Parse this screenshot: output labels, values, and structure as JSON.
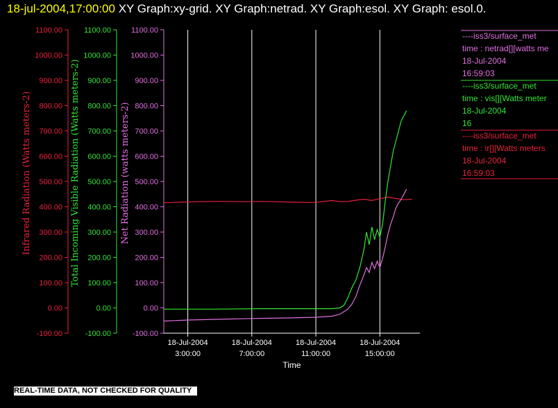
{
  "header": {
    "timestamp": "18-jul-2004,17:00:00",
    "title_rest": "  XY Graph:xy-grid.  XY Graph:netrad.  XY Graph:esol.  XY Graph: esol.0."
  },
  "footer": {
    "note": "REAL-TIME DATA, NOT CHECKED FOR QUALITY"
  },
  "colors": {
    "background": "#000000",
    "ir": "#e8203c",
    "vis": "#33e633",
    "net": "#e070e0",
    "grid": "#ffffff",
    "text": "#ffffff"
  },
  "chart_data": {
    "type": "line",
    "xlabel": "Time",
    "x_range": [
      "18-Jul-2004 01:30:00",
      "18-Jul-2004 17:30:00"
    ],
    "ylim": [
      -100,
      1100
    ],
    "y_ticks": [
      "-100.00",
      "0.00",
      "100.00",
      "200.00",
      "300.00",
      "400.00",
      "500.00",
      "600.00",
      "700.00",
      "800.00",
      "900.00",
      "1000.00",
      "1100.00"
    ],
    "x_ticks": [
      {
        "date": "18-Jul-2004",
        "time": "3:00:00"
      },
      {
        "date": "18-Jul-2004",
        "time": "7:00:00"
      },
      {
        "date": "18-Jul-2004",
        "time": "11:00:00"
      },
      {
        "date": "18-Jul-2004",
        "time": "15:00:00"
      }
    ],
    "grid": "vertical",
    "axes": [
      {
        "key": "ir",
        "label": "Infrared Radiation (Watts meters-2)"
      },
      {
        "key": "vis",
        "label": "Total Incoming Visible Radiation (Watts meters-2)"
      },
      {
        "key": "net",
        "label": "Net Radiation (watts meters-2)"
      }
    ],
    "series": [
      {
        "key": "ir",
        "legend": [
          "----iss3/surface_met",
          "time : ir[][Watts meters",
          "18-Jul-2004",
          "16:59:03"
        ],
        "points": [
          [
            "01:30",
            416
          ],
          [
            "02:30",
            418
          ],
          [
            "03:30",
            420
          ],
          [
            "04:30",
            421
          ],
          [
            "05:30",
            421
          ],
          [
            "06:30",
            420
          ],
          [
            "07:30",
            421
          ],
          [
            "08:30",
            420
          ],
          [
            "09:30",
            418
          ],
          [
            "10:30",
            417
          ],
          [
            "11:00",
            417
          ],
          [
            "11:30",
            421
          ],
          [
            "12:00",
            425
          ],
          [
            "12:30",
            420
          ],
          [
            "13:00",
            421
          ],
          [
            "13:30",
            426
          ],
          [
            "14:00",
            430
          ],
          [
            "14:30",
            425
          ],
          [
            "15:00",
            432
          ],
          [
            "15:30",
            438
          ],
          [
            "16:00",
            433
          ],
          [
            "16:30",
            428
          ],
          [
            "17:00",
            430
          ]
        ]
      },
      {
        "key": "vis",
        "legend": [
          "----iss3/surface_met",
          "time : vis[][Watts meter",
          "18-Jul-2004",
          "16"
        ],
        "points": [
          [
            "01:30",
            -5
          ],
          [
            "04:30",
            -5
          ],
          [
            "07:30",
            -3
          ],
          [
            "10:30",
            -3
          ],
          [
            "12:00",
            -3
          ],
          [
            "12:30",
            0
          ],
          [
            "12:45",
            10
          ],
          [
            "13:00",
            40
          ],
          [
            "13:15",
            80
          ],
          [
            "13:30",
            110
          ],
          [
            "13:45",
            160
          ],
          [
            "14:00",
            230
          ],
          [
            "14:10",
            300
          ],
          [
            "14:20",
            250
          ],
          [
            "14:30",
            320
          ],
          [
            "14:40",
            270
          ],
          [
            "14:50",
            310
          ],
          [
            "15:00",
            280
          ],
          [
            "15:10",
            330
          ],
          [
            "15:20",
            420
          ],
          [
            "15:30",
            500
          ],
          [
            "15:40",
            560
          ],
          [
            "15:50",
            620
          ],
          [
            "16:00",
            660
          ],
          [
            "16:10",
            700
          ],
          [
            "16:20",
            740
          ],
          [
            "16:30",
            760
          ],
          [
            "16:40",
            780
          ]
        ]
      },
      {
        "key": "net",
        "legend": [
          "----iss3/surface_met",
          "time : netrad[][watts me",
          "18-Jul-2004",
          "16:59:03"
        ],
        "points": [
          [
            "01:30",
            -52
          ],
          [
            "03:00",
            -48
          ],
          [
            "05:00",
            -45
          ],
          [
            "07:00",
            -42
          ],
          [
            "09:00",
            -40
          ],
          [
            "11:00",
            -37
          ],
          [
            "12:00",
            -33
          ],
          [
            "12:30",
            -25
          ],
          [
            "13:00",
            -5
          ],
          [
            "13:15",
            15
          ],
          [
            "13:30",
            45
          ],
          [
            "13:45",
            90
          ],
          [
            "14:00",
            130
          ],
          [
            "14:10",
            160
          ],
          [
            "14:20",
            140
          ],
          [
            "14:30",
            180
          ],
          [
            "14:40",
            155
          ],
          [
            "14:50",
            185
          ],
          [
            "15:00",
            160
          ],
          [
            "15:10",
            195
          ],
          [
            "15:20",
            240
          ],
          [
            "15:30",
            290
          ],
          [
            "15:40",
            330
          ],
          [
            "15:50",
            360
          ],
          [
            "16:00",
            395
          ],
          [
            "16:10",
            415
          ],
          [
            "16:20",
            430
          ],
          [
            "16:30",
            450
          ],
          [
            "16:40",
            470
          ]
        ]
      }
    ]
  }
}
